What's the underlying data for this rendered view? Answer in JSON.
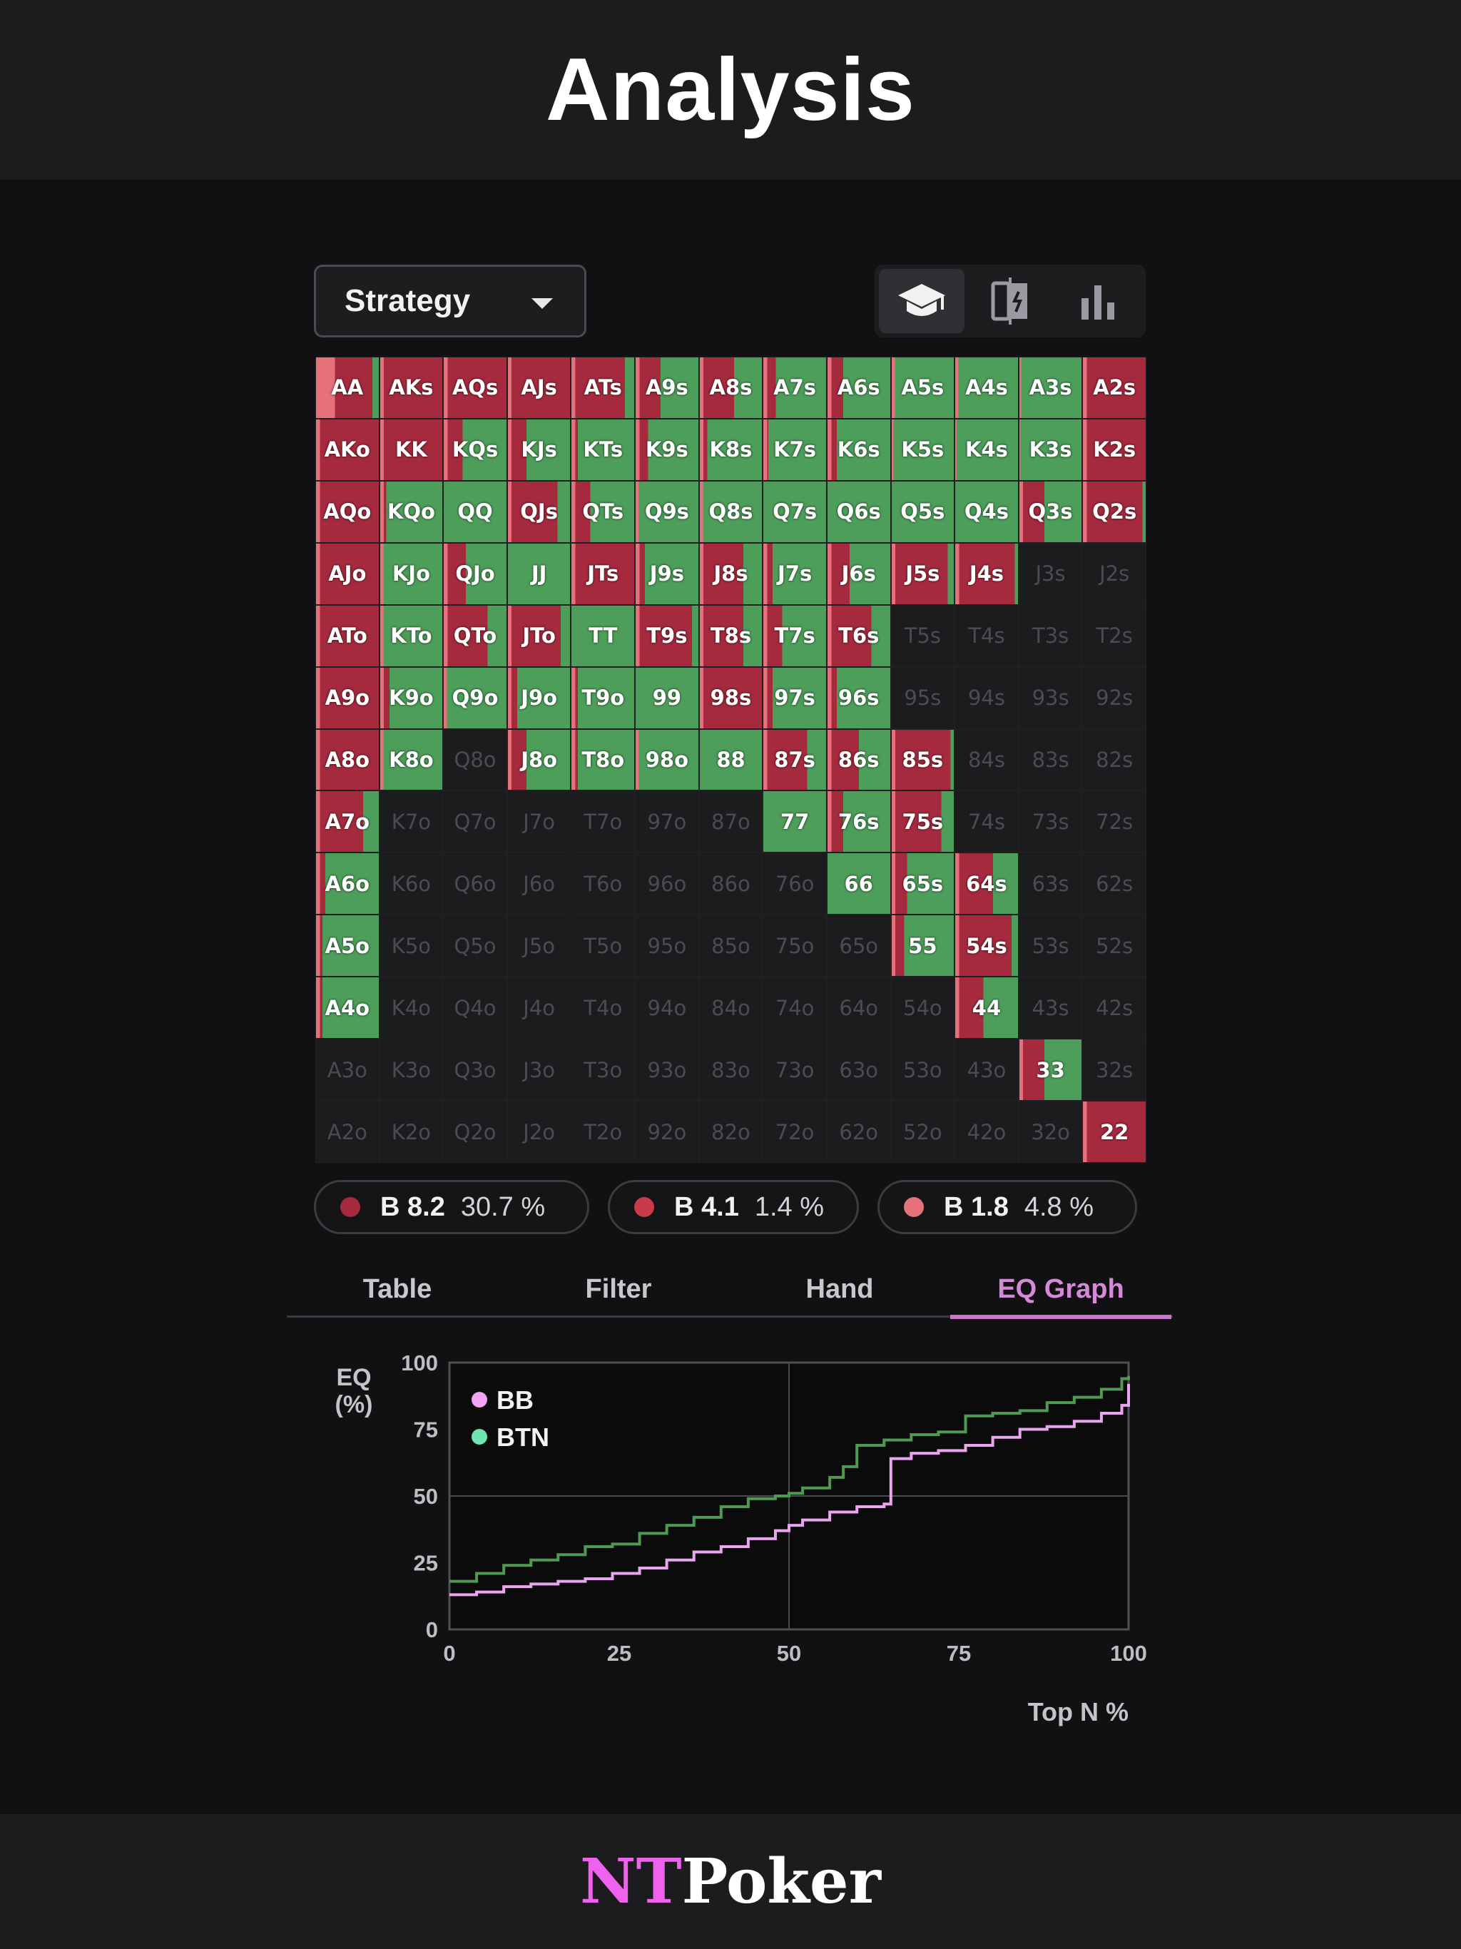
{
  "header": {
    "title": "Analysis"
  },
  "dropdown": {
    "label": "Strategy"
  },
  "view_buttons": [
    {
      "name": "learn",
      "icon": "graduation-cap-icon",
      "active": true
    },
    {
      "name": "compare",
      "icon": "compare-icon",
      "active": false
    },
    {
      "name": "stats",
      "icon": "bar-chart-icon",
      "active": false
    }
  ],
  "colors": {
    "green": "#4d9e5a",
    "dark_red": "#a52a3e",
    "mid_red": "#c73b4b",
    "light_red": "#e5727a",
    "bb_line": "#e9a6ee",
    "btn_line": "#4f9a52",
    "bb_legend": "#f0a6f4",
    "btn_legend": "#6ee6b4"
  },
  "matrix": {
    "rows": [
      [
        {
          "h": "AA",
          "g": 10,
          "r": 90,
          "l": 30
        },
        {
          "h": "AKs",
          "g": 0,
          "r": 100
        },
        {
          "h": "AQs",
          "g": 0,
          "r": 100
        },
        {
          "h": "AJs",
          "g": 0,
          "r": 100
        },
        {
          "h": "ATs",
          "g": 15,
          "r": 85
        },
        {
          "h": "A9s",
          "g": 60,
          "r": 40
        },
        {
          "h": "A8s",
          "g": 45,
          "r": 55
        },
        {
          "h": "A7s",
          "g": 80,
          "r": 20
        },
        {
          "h": "A6s",
          "g": 75,
          "r": 25
        },
        {
          "h": "A5s",
          "g": 95,
          "r": 5
        },
        {
          "h": "A4s",
          "g": 95,
          "r": 5
        },
        {
          "h": "A3s",
          "g": 97,
          "r": 3
        },
        {
          "h": "A2s",
          "g": 0,
          "r": 100
        }
      ],
      [
        {
          "h": "AKo",
          "g": 0,
          "r": 100
        },
        {
          "h": "KK",
          "g": 0,
          "r": 100
        },
        {
          "h": "KQs",
          "g": 70,
          "r": 30
        },
        {
          "h": "KJs",
          "g": 70,
          "r": 30
        },
        {
          "h": "KTs",
          "g": 90,
          "r": 10
        },
        {
          "h": "K9s",
          "g": 80,
          "r": 20
        },
        {
          "h": "K8s",
          "g": 88,
          "r": 12
        },
        {
          "h": "K7s",
          "g": 92,
          "r": 8
        },
        {
          "h": "K6s",
          "g": 85,
          "r": 15
        },
        {
          "h": "K5s",
          "g": 97,
          "r": 3
        },
        {
          "h": "K4s",
          "g": 98,
          "r": 2
        },
        {
          "h": "K3s",
          "g": 98,
          "r": 2
        },
        {
          "h": "K2s",
          "g": 0,
          "r": 100
        }
      ],
      [
        {
          "h": "AQo",
          "g": 0,
          "r": 100
        },
        {
          "h": "KQo",
          "g": 90,
          "r": 10
        },
        {
          "h": "QQ",
          "g": 100,
          "r": 0
        },
        {
          "h": "QJs",
          "g": 20,
          "r": 80
        },
        {
          "h": "QTs",
          "g": 70,
          "r": 30
        },
        {
          "h": "Q9s",
          "g": 95,
          "r": 5
        },
        {
          "h": "Q8s",
          "g": 95,
          "r": 5
        },
        {
          "h": "Q7s",
          "g": 100,
          "r": 0
        },
        {
          "h": "Q6s",
          "g": 100,
          "r": 0
        },
        {
          "h": "Q5s",
          "g": 100,
          "r": 0
        },
        {
          "h": "Q4s",
          "g": 100,
          "r": 0
        },
        {
          "h": "Q3s",
          "g": 60,
          "r": 40
        },
        {
          "h": "Q2s",
          "g": 5,
          "r": 95
        }
      ],
      [
        {
          "h": "AJo",
          "g": 0,
          "r": 100
        },
        {
          "h": "KJo",
          "g": 95,
          "r": 5
        },
        {
          "h": "QJo",
          "g": 65,
          "r": 35
        },
        {
          "h": "JJ",
          "g": 100,
          "r": 0
        },
        {
          "h": "JTs",
          "g": 0,
          "r": 100
        },
        {
          "h": "J9s",
          "g": 85,
          "r": 15
        },
        {
          "h": "J8s",
          "g": 30,
          "r": 70
        },
        {
          "h": "J7s",
          "g": 85,
          "r": 15
        },
        {
          "h": "J6s",
          "g": 65,
          "r": 35
        },
        {
          "h": "J5s",
          "g": 10,
          "r": 90
        },
        {
          "h": "J4s",
          "g": 5,
          "r": 95
        },
        {
          "h": "J3s",
          "off": true
        },
        {
          "h": "J2s",
          "off": true
        }
      ],
      [
        {
          "h": "ATo",
          "g": 0,
          "r": 100
        },
        {
          "h": "KTo",
          "g": 95,
          "r": 5
        },
        {
          "h": "QTo",
          "g": 30,
          "r": 70
        },
        {
          "h": "JTo",
          "g": 15,
          "r": 85
        },
        {
          "h": "TT",
          "g": 100,
          "r": 0
        },
        {
          "h": "T9s",
          "g": 10,
          "r": 90
        },
        {
          "h": "T8s",
          "g": 30,
          "r": 70
        },
        {
          "h": "T7s",
          "g": 70,
          "r": 30
        },
        {
          "h": "T6s",
          "g": 30,
          "r": 70
        },
        {
          "h": "T5s",
          "off": true
        },
        {
          "h": "T4s",
          "off": true
        },
        {
          "h": "T3s",
          "off": true
        },
        {
          "h": "T2s",
          "off": true
        }
      ],
      [
        {
          "h": "A9o",
          "g": 0,
          "r": 100
        },
        {
          "h": "K9o",
          "g": 85,
          "r": 15
        },
        {
          "h": "Q9o",
          "g": 95,
          "r": 5
        },
        {
          "h": "J9o",
          "g": 85,
          "r": 15
        },
        {
          "h": "T9o",
          "g": 90,
          "r": 10
        },
        {
          "h": "99",
          "g": 100,
          "r": 0
        },
        {
          "h": "98s",
          "g": 0,
          "r": 100
        },
        {
          "h": "97s",
          "g": 85,
          "r": 15
        },
        {
          "h": "96s",
          "g": 85,
          "r": 15
        },
        {
          "h": "95s",
          "off": true
        },
        {
          "h": "94s",
          "off": true
        },
        {
          "h": "93s",
          "off": true
        },
        {
          "h": "92s",
          "off": true
        }
      ],
      [
        {
          "h": "A8o",
          "g": 0,
          "r": 100
        },
        {
          "h": "K8o",
          "g": 95,
          "r": 5
        },
        {
          "h": "Q8o",
          "off": true
        },
        {
          "h": "J8o",
          "g": 70,
          "r": 30
        },
        {
          "h": "T8o",
          "g": 90,
          "r": 10
        },
        {
          "h": "98o",
          "g": 95,
          "r": 5
        },
        {
          "h": "88",
          "g": 100,
          "r": 0
        },
        {
          "h": "87s",
          "g": 30,
          "r": 70
        },
        {
          "h": "86s",
          "g": 50,
          "r": 50
        },
        {
          "h": "85s",
          "g": 5,
          "r": 95
        },
        {
          "h": "84s",
          "off": true
        },
        {
          "h": "83s",
          "off": true
        },
        {
          "h": "82s",
          "off": true
        }
      ],
      [
        {
          "h": "A7o",
          "g": 25,
          "r": 75
        },
        {
          "h": "K7o",
          "off": true
        },
        {
          "h": "Q7o",
          "off": true
        },
        {
          "h": "J7o",
          "off": true
        },
        {
          "h": "T7o",
          "off": true
        },
        {
          "h": "97o",
          "off": true
        },
        {
          "h": "87o",
          "off": true
        },
        {
          "h": "77",
          "g": 100,
          "r": 0
        },
        {
          "h": "76s",
          "g": 75,
          "r": 25
        },
        {
          "h": "75s",
          "g": 20,
          "r": 80
        },
        {
          "h": "74s",
          "off": true
        },
        {
          "h": "73s",
          "off": true
        },
        {
          "h": "72s",
          "off": true
        }
      ],
      [
        {
          "h": "A6o",
          "g": 85,
          "r": 15
        },
        {
          "h": "K6o",
          "off": true
        },
        {
          "h": "Q6o",
          "off": true
        },
        {
          "h": "J6o",
          "off": true
        },
        {
          "h": "T6o",
          "off": true
        },
        {
          "h": "96o",
          "off": true
        },
        {
          "h": "86o",
          "off": true
        },
        {
          "h": "76o",
          "off": true
        },
        {
          "h": "66",
          "g": 100,
          "r": 0
        },
        {
          "h": "65s",
          "g": 75,
          "r": 25
        },
        {
          "h": "64s",
          "g": 40,
          "r": 60
        },
        {
          "h": "63s",
          "off": true
        },
        {
          "h": "62s",
          "off": true
        }
      ],
      [
        {
          "h": "A5o",
          "g": 90,
          "r": 10
        },
        {
          "h": "K5o",
          "off": true
        },
        {
          "h": "Q5o",
          "off": true
        },
        {
          "h": "J5o",
          "off": true
        },
        {
          "h": "T5o",
          "off": true
        },
        {
          "h": "95o",
          "off": true
        },
        {
          "h": "85o",
          "off": true
        },
        {
          "h": "75o",
          "off": true
        },
        {
          "h": "65o",
          "off": true
        },
        {
          "h": "55",
          "g": 80,
          "r": 20
        },
        {
          "h": "54s",
          "g": 10,
          "r": 90
        },
        {
          "h": "53s",
          "off": true
        },
        {
          "h": "52s",
          "off": true
        }
      ],
      [
        {
          "h": "A4o",
          "g": 90,
          "r": 10
        },
        {
          "h": "K4o",
          "off": true
        },
        {
          "h": "Q4o",
          "off": true
        },
        {
          "h": "J4o",
          "off": true
        },
        {
          "h": "T4o",
          "off": true
        },
        {
          "h": "94o",
          "off": true
        },
        {
          "h": "84o",
          "off": true
        },
        {
          "h": "74o",
          "off": true
        },
        {
          "h": "64o",
          "off": true
        },
        {
          "h": "54o",
          "off": true
        },
        {
          "h": "44",
          "g": 55,
          "r": 45
        },
        {
          "h": "43s",
          "off": true
        },
        {
          "h": "42s",
          "off": true
        }
      ],
      [
        {
          "h": "A3o",
          "off": true
        },
        {
          "h": "K3o",
          "off": true
        },
        {
          "h": "Q3o",
          "off": true
        },
        {
          "h": "J3o",
          "off": true
        },
        {
          "h": "T3o",
          "off": true
        },
        {
          "h": "93o",
          "off": true
        },
        {
          "h": "83o",
          "off": true
        },
        {
          "h": "73o",
          "off": true
        },
        {
          "h": "63o",
          "off": true
        },
        {
          "h": "53o",
          "off": true
        },
        {
          "h": "43o",
          "off": true
        },
        {
          "h": "33",
          "g": 60,
          "r": 40
        },
        {
          "h": "32s",
          "off": true
        }
      ],
      [
        {
          "h": "A2o",
          "off": true
        },
        {
          "h": "K2o",
          "off": true
        },
        {
          "h": "Q2o",
          "off": true
        },
        {
          "h": "J2o",
          "off": true
        },
        {
          "h": "T2o",
          "off": true
        },
        {
          "h": "92o",
          "off": true
        },
        {
          "h": "82o",
          "off": true
        },
        {
          "h": "72o",
          "off": true
        },
        {
          "h": "62o",
          "off": true
        },
        {
          "h": "52o",
          "off": true
        },
        {
          "h": "42o",
          "off": true
        },
        {
          "h": "32o",
          "off": true
        },
        {
          "h": "22",
          "g": 0,
          "r": 100
        }
      ]
    ]
  },
  "actions": [
    {
      "label": "B 8.2",
      "percent": "30.7 %",
      "color": "#a52a3e"
    },
    {
      "label": "B 4.1",
      "percent": "1.4 %",
      "color": "#c73b4b"
    },
    {
      "label": "B 1.8",
      "percent": "4.8 %",
      "color": "#e5727a"
    }
  ],
  "tabs": [
    {
      "label": "Table",
      "active": false
    },
    {
      "label": "Filter",
      "active": false
    },
    {
      "label": "Hand",
      "active": false
    },
    {
      "label": "EQ Graph",
      "active": true
    }
  ],
  "chart_data": {
    "type": "line",
    "ylabel": "EQ\n(%)",
    "xlabel": "Top N %",
    "xlim": [
      0,
      100
    ],
    "ylim": [
      0,
      100
    ],
    "xticks": [
      0,
      25,
      50,
      75,
      100
    ],
    "yticks": [
      0,
      25,
      50,
      75,
      100
    ],
    "legend_position": "top-left",
    "series": [
      {
        "name": "BB",
        "color": "#e9a6ee",
        "x": [
          0,
          4,
          8,
          12,
          16,
          20,
          24,
          28,
          32,
          36,
          40,
          44,
          48,
          50,
          52,
          56,
          60,
          64,
          65,
          68,
          72,
          76,
          80,
          84,
          88,
          92,
          96,
          99,
          100
        ],
        "y": [
          13,
          14,
          16,
          17,
          18,
          19,
          21,
          23,
          26,
          29,
          31,
          34,
          37,
          39,
          41,
          44,
          46,
          47,
          64,
          66,
          67,
          69,
          72,
          75,
          76,
          78,
          81,
          84,
          92
        ]
      },
      {
        "name": "BTN",
        "color": "#4f9a52",
        "x": [
          0,
          4,
          8,
          12,
          16,
          20,
          24,
          28,
          32,
          36,
          40,
          44,
          48,
          50,
          52,
          56,
          58,
          60,
          64,
          68,
          72,
          76,
          80,
          84,
          88,
          92,
          96,
          99,
          100
        ],
        "y": [
          18,
          21,
          24,
          26,
          28,
          31,
          32,
          36,
          39,
          42,
          46,
          49,
          50,
          51,
          53,
          57,
          61,
          69,
          71,
          73,
          74,
          80,
          81,
          82,
          85,
          87,
          90,
          94,
          95
        ]
      }
    ]
  },
  "footer": {
    "brand_part1": "NT",
    "brand_part2": "Poker"
  }
}
